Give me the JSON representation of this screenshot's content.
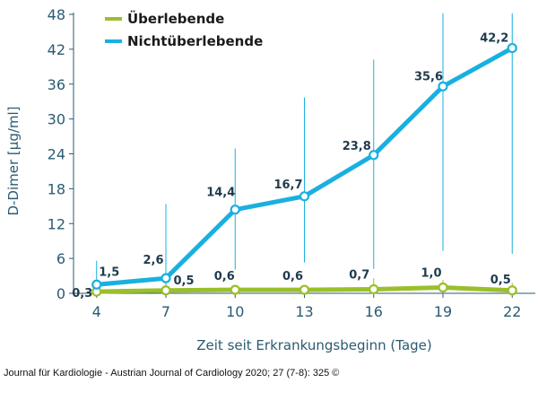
{
  "chart_data": {
    "type": "line",
    "xlabel": "Zeit seit Erkrankungsbeginn (Tage)",
    "ylabel": "D-Dimer [µg/ml]",
    "x": [
      4,
      7,
      10,
      13,
      16,
      19,
      22
    ],
    "x_tick_labels": [
      "4",
      "7",
      "10",
      "13",
      "16",
      "19",
      "22"
    ],
    "xlim": [
      3,
      23
    ],
    "ylim": [
      0,
      48
    ],
    "y_ticks": [
      0,
      6,
      12,
      18,
      24,
      30,
      36,
      42,
      48
    ],
    "y_tick_labels": [
      "0",
      "6",
      "12",
      "18",
      "24",
      "30",
      "36",
      "42",
      "48"
    ],
    "grid": false,
    "legend_position": "top-left",
    "series": [
      {
        "name": "Überlebende",
        "color": "#9bbf2a",
        "values": [
          0.3,
          0.5,
          0.6,
          0.6,
          0.7,
          1.0,
          0.5
        ],
        "labels": [
          "0,3",
          "0,5",
          "0,6",
          "0,6",
          "0,7",
          "1,0",
          "0,5"
        ],
        "error_upper": [
          0.6,
          1.2,
          1.3,
          1.4,
          2.6,
          2.3,
          1.8
        ],
        "error_lower": [
          0.1,
          0.1,
          0.2,
          0.2,
          0.2,
          0.3,
          0.2
        ]
      },
      {
        "name": "Nichtüberlebende",
        "color": "#19b0e0",
        "values": [
          1.5,
          2.6,
          14.4,
          16.7,
          23.8,
          35.6,
          42.2
        ],
        "labels": [
          "1,5",
          "2,6",
          "14,4",
          "16,7",
          "23,8",
          "35,6",
          "42,2"
        ],
        "error_upper": [
          5.6,
          15.4,
          24.9,
          33.7,
          40.2,
          48.2,
          48.2
        ],
        "error_lower": [
          0.4,
          0.7,
          4.1,
          5.3,
          4.2,
          7.3,
          6.8
        ]
      }
    ]
  },
  "footer": "Journal für Kardiologie - Austrian Journal of Cardiology 2020; 27 (7-8): 325 ©"
}
